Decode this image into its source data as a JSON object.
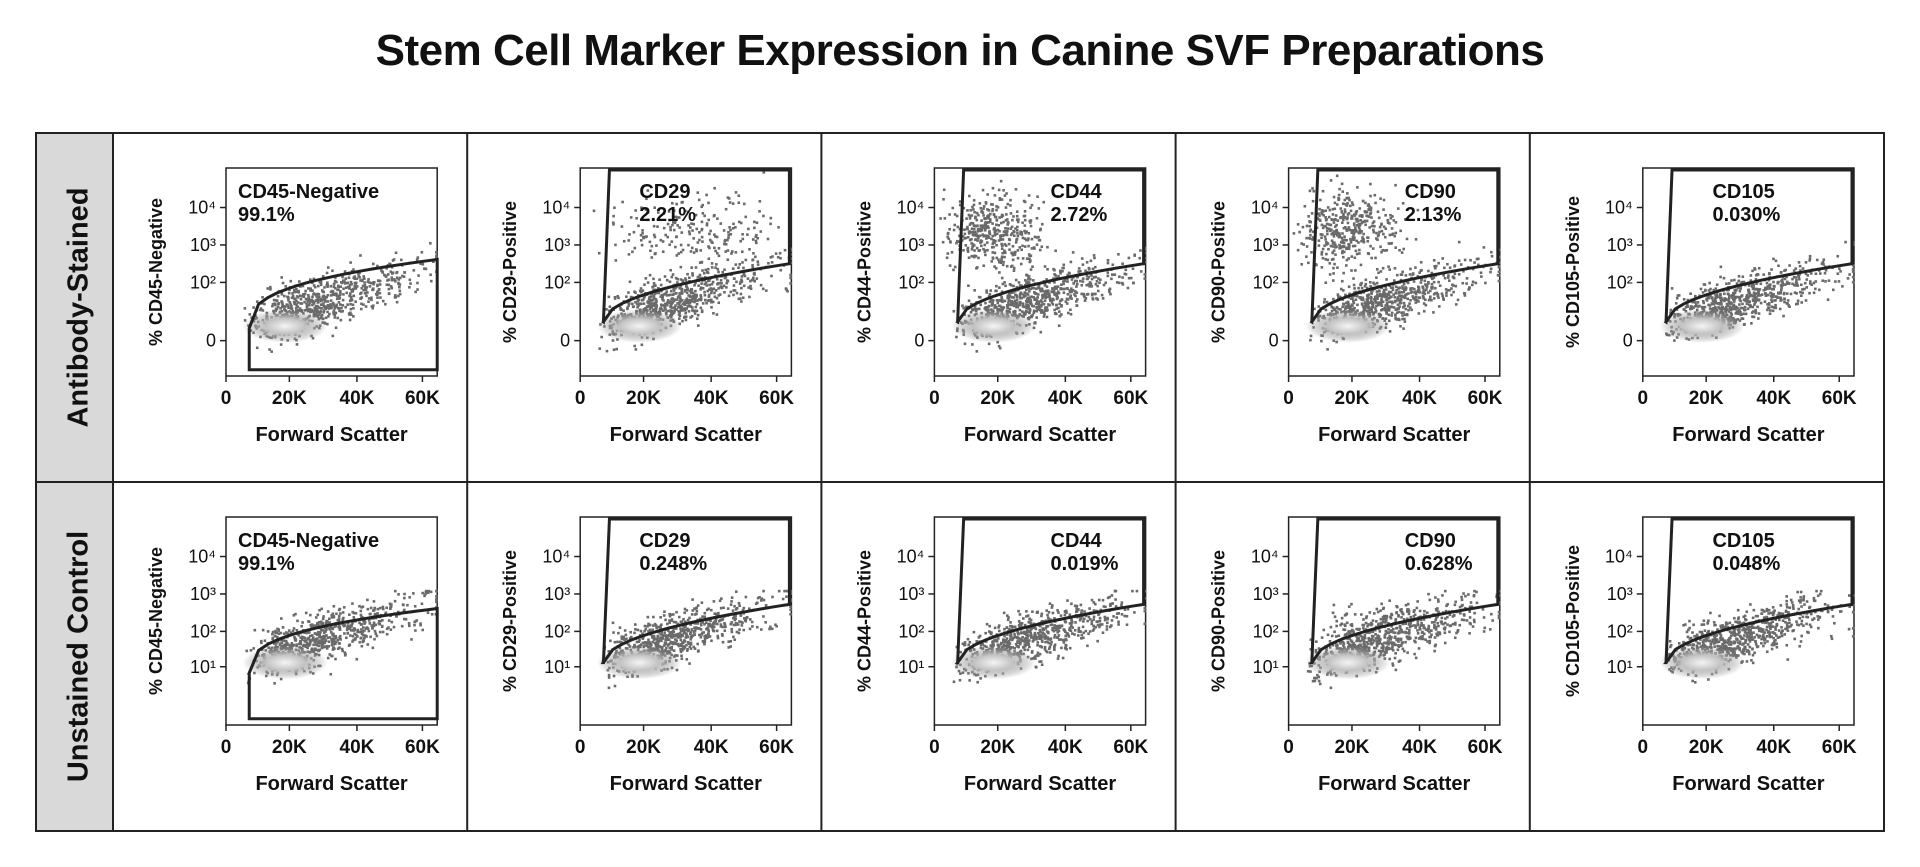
{
  "title": "Stem Cell Marker Expression in Canine SVF Preparations",
  "rows": [
    {
      "label": "Antibody-Stained"
    },
    {
      "label": "Unstained Control"
    }
  ],
  "chart_data": {
    "type": "scatter",
    "plot_kind": "flow cytometry density plots with gates",
    "xlabel": "Forward Scatter",
    "x_ticks": [
      "0",
      "20K",
      "40K",
      "60K"
    ],
    "y_scale": "log",
    "colors": {
      "frame": "#222222",
      "density_low": "#6a6a6a",
      "density_high": "#eeeeee",
      "row_header": "#d9d9d9"
    },
    "panels": [
      {
        "id": "cd45-stained",
        "row": 0,
        "marker": "CD45",
        "gate_label": "CD45-Negative",
        "percent": "99.1%",
        "ylabel": "% CD45-Negative",
        "gate": "negative",
        "y_ticks": [
          "0",
          "10²",
          "10³",
          "10⁴"
        ]
      },
      {
        "id": "cd29-stained",
        "row": 0,
        "marker": "CD29",
        "gate_label": "CD29",
        "percent": "2.21%",
        "ylabel": "% CD29-Positive",
        "gate": "positive",
        "y_ticks": [
          "0",
          "10²",
          "10³",
          "10⁴"
        ]
      },
      {
        "id": "cd44-stained",
        "row": 0,
        "marker": "CD44",
        "gate_label": "CD44",
        "percent": "2.72%",
        "ylabel": "% CD44-Positive",
        "gate": "positive",
        "y_ticks": [
          "0",
          "10²",
          "10³",
          "10⁴"
        ]
      },
      {
        "id": "cd90-stained",
        "row": 0,
        "marker": "CD90",
        "gate_label": "CD90",
        "percent": "2.13%",
        "ylabel": "% CD90-Positive",
        "gate": "positive",
        "y_ticks": [
          "0",
          "10²",
          "10³",
          "10⁴"
        ]
      },
      {
        "id": "cd105-stained",
        "row": 0,
        "marker": "CD105",
        "gate_label": "CD105",
        "percent": "0.030%",
        "ylabel": "% CD105-Positive",
        "gate": "positive",
        "y_ticks": [
          "0",
          "10²",
          "10³",
          "10⁴"
        ]
      },
      {
        "id": "cd45-unstained",
        "row": 1,
        "marker": "CD45",
        "gate_label": "CD45-Negative",
        "percent": "99.1%",
        "ylabel": "% CD45-Negative",
        "gate": "negative",
        "y_ticks": [
          "10¹",
          "10²",
          "10³",
          "10⁴"
        ]
      },
      {
        "id": "cd29-unstained",
        "row": 1,
        "marker": "CD29",
        "gate_label": "CD29",
        "percent": "0.248%",
        "ylabel": "% CD29-Positive",
        "gate": "positive",
        "y_ticks": [
          "10¹",
          "10²",
          "10³",
          "10⁴"
        ]
      },
      {
        "id": "cd44-unstained",
        "row": 1,
        "marker": "CD44",
        "gate_label": "CD44",
        "percent": "0.019%",
        "ylabel": "% CD44-Positive",
        "gate": "positive",
        "y_ticks": [
          "10¹",
          "10²",
          "10³",
          "10⁴"
        ]
      },
      {
        "id": "cd90-unstained",
        "row": 1,
        "marker": "CD90",
        "gate_label": "CD90",
        "percent": "0.628%",
        "ylabel": "% CD90-Positive",
        "gate": "positive",
        "y_ticks": [
          "10¹",
          "10²",
          "10³",
          "10⁴"
        ]
      },
      {
        "id": "cd105-unstained",
        "row": 1,
        "marker": "CD105",
        "gate_label": "CD105",
        "percent": "0.048%",
        "ylabel": "% CD105-Positive",
        "gate": "positive",
        "y_ticks": [
          "10¹",
          "10²",
          "10³",
          "10⁴"
        ]
      }
    ]
  }
}
